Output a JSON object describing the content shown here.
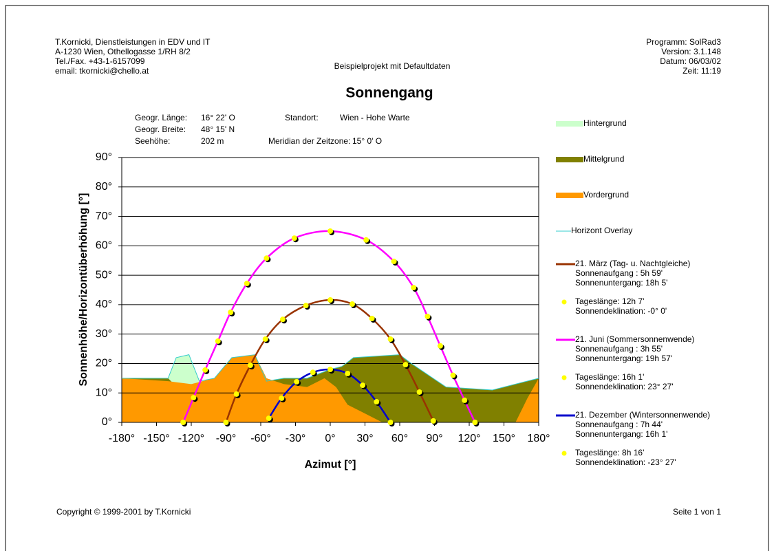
{
  "header": {
    "left": [
      "T.Kornicki, Dienstleistungen in EDV und IT",
      "A-1230 Wien, Othellogasse 1/RH 8/2",
      "Tel./Fax. +43-1-6157099",
      "email: tkornicki@chello.at"
    ],
    "center": "Beispielprojekt mit Defaultdaten",
    "right": [
      "Programm: SolRad3",
      "Version: 3.1.148",
      "Datum: 06/03/02",
      "Zeit: 11:19"
    ]
  },
  "info": {
    "laenge_label": "Geogr. Länge:",
    "laenge": "16° 22' O",
    "standort_label": "Standort:",
    "standort": "Wien - Hohe Warte",
    "breite_label": "Geogr. Breite:",
    "breite": "48° 15' N",
    "hoehe_label": "Seehöhe:",
    "hoehe": "202 m",
    "meridian_label": "Meridian der Zeitzone:",
    "meridian": "15° 0' O"
  },
  "footer": {
    "copyright": "Copyright © 1999-2001 by T.Kornicki",
    "page": "Seite 1 von 1"
  },
  "chart_data": {
    "type": "line",
    "title": "Sonnengang",
    "x_label": "Azimut [°]",
    "y_label": "Sonnenhöhe/Horizontüberhöhung [°]",
    "xlim": [
      -180,
      180
    ],
    "ylim": [
      0,
      90
    ],
    "grid": true,
    "xticks": [
      {
        "value": -180,
        "label": "-180°"
      },
      {
        "value": -150,
        "label": "-150°"
      },
      {
        "value": -120,
        "label": "-120°"
      },
      {
        "value": -90,
        "label": "-90°"
      },
      {
        "value": -60,
        "label": "-60°"
      },
      {
        "value": -30,
        "label": "-30°"
      },
      {
        "value": 0,
        "label": "0°"
      },
      {
        "value": 30,
        "label": "30°"
      },
      {
        "value": 60,
        "label": "60°"
      },
      {
        "value": 90,
        "label": "90°"
      },
      {
        "value": 120,
        "label": "120°"
      },
      {
        "value": 150,
        "label": "150°"
      },
      {
        "value": 180,
        "label": "180°"
      }
    ],
    "yticks": [
      {
        "value": 0,
        "label": "0°"
      },
      {
        "value": 10,
        "label": "10°"
      },
      {
        "value": 20,
        "label": "20°"
      },
      {
        "value": 30,
        "label": "30°"
      },
      {
        "value": 40,
        "label": "40°"
      },
      {
        "value": 50,
        "label": "50°"
      },
      {
        "value": 60,
        "label": "60°"
      },
      {
        "value": 70,
        "label": "70°"
      },
      {
        "value": 80,
        "label": "80°"
      },
      {
        "value": 90,
        "label": "90°"
      }
    ],
    "dot_color": "#ffff00",
    "series": [
      {
        "name": "Hintergrund",
        "style": "area",
        "color": "#ccffcc",
        "x": [
          -180,
          -140,
          -133,
          -122,
          -113,
          -100,
          -85,
          -65,
          -55,
          -40,
          -20,
          0,
          10,
          20,
          60,
          70,
          100,
          140,
          180
        ],
        "values": [
          15,
          15,
          22,
          23,
          14,
          15,
          22,
          23,
          14,
          15,
          15,
          18,
          19,
          22,
          23,
          20,
          12,
          11,
          15
        ]
      },
      {
        "name": "Mittelgrund",
        "style": "area",
        "color": "#808000",
        "x": [
          -180,
          -140,
          -130,
          -110,
          -100,
          -85,
          -65,
          -55,
          -40,
          -20,
          0,
          10,
          20,
          60,
          70,
          100,
          140,
          180
        ],
        "values": [
          15,
          15,
          11,
          14,
          15,
          22,
          23,
          14,
          15,
          15,
          18,
          19,
          22,
          23,
          20,
          12,
          11,
          15
        ]
      },
      {
        "name": "Vordergrund",
        "style": "area",
        "color": "#ff9900",
        "x": [
          -180,
          -140,
          -120,
          -100,
          -85,
          -65,
          -55,
          -40,
          -20,
          -5,
          5,
          15,
          30,
          45,
          160,
          170,
          180
        ],
        "values": [
          15,
          14,
          13,
          15,
          22,
          23,
          15,
          13,
          12,
          15,
          12,
          6,
          3,
          0,
          0,
          8,
          15
        ]
      },
      {
        "name": "Horizont Overlay",
        "style": "overlay",
        "color": "#33cccc",
        "x": [
          -180,
          -140,
          -133,
          -122,
          -113,
          -100,
          -85,
          -65,
          -55,
          -40,
          -20,
          0,
          10,
          20,
          60,
          70,
          100,
          140,
          180
        ],
        "values": [
          15,
          15,
          22,
          23,
          14,
          15,
          22,
          23,
          14,
          15,
          15,
          18,
          19,
          22,
          23,
          20,
          12,
          11,
          15
        ]
      },
      {
        "name": "21. März (Tag- u. Nachtgleiche)",
        "style": "sunpath",
        "color": "#993300",
        "details": [
          "Sonnenaufgang  : 5h 59'",
          "Sonnenuntergang: 18h 5'"
        ],
        "dot_details": [
          "Tageslänge: 12h 7'",
          "Sonnendeklination: -0° 0'"
        ],
        "x": [
          -90,
          -81,
          -69,
          -56,
          -41,
          -21,
          0,
          19,
          36,
          52,
          65,
          77,
          89
        ],
        "values": [
          0,
          9.6,
          19.4,
          28.3,
          35,
          39.7,
          41.6,
          40.2,
          35.3,
          28.3,
          19.6,
          10.3,
          0.5
        ]
      },
      {
        "name": "21. Juni (Sommersonnenwende)",
        "style": "sunpath",
        "color": "#ff00ff",
        "details": [
          "Sonnenaufgang  : 3h 55'",
          "Sonnenuntergang: 19h 57'"
        ],
        "dot_details": [
          "Tageslänge: 16h 1'",
          "Sonnendeklination: 23° 27'"
        ],
        "x": [
          -127,
          -118,
          -108,
          -97,
          -86,
          -72,
          -55,
          -31,
          0,
          31,
          55,
          72,
          84,
          95,
          106,
          116,
          125
        ],
        "values": [
          0,
          8.4,
          17.8,
          27.6,
          37.4,
          47.2,
          55.8,
          62.6,
          65,
          62,
          54.7,
          45.8,
          36,
          26,
          16,
          7.5,
          0
        ]
      },
      {
        "name": "21. Dezember (Wintersonnenwende)",
        "style": "sunpath",
        "color": "#0000cc",
        "details": [
          "Sonnenaufgang  : 7h 44'",
          "Sonnenuntergang: 16h 1'"
        ],
        "dot_details": [
          "Tageslänge: 8h 16'",
          "Sonnendeklination: -23° 27'"
        ],
        "x": [
          -53,
          -42,
          -29,
          -15,
          0,
          15,
          28,
          40,
          52
        ],
        "values": [
          1.4,
          8.2,
          13.8,
          17,
          18,
          16.6,
          12.6,
          7,
          0
        ]
      }
    ]
  }
}
